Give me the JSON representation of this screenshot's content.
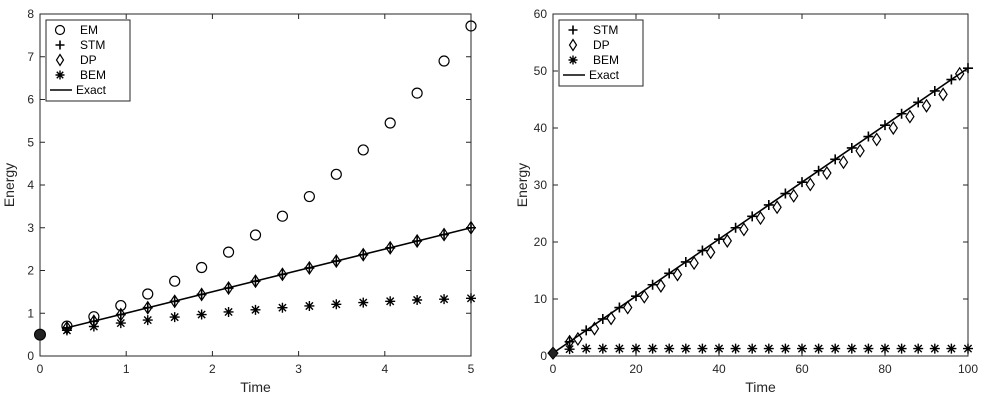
{
  "chart_data": [
    {
      "type": "scatter",
      "title": "",
      "xlabel": "Time",
      "ylabel": "Energy",
      "xlim": [
        0,
        5
      ],
      "ylim": [
        0,
        8
      ],
      "xticks": [
        "0",
        "1",
        "2",
        "3",
        "4",
        "5"
      ],
      "yticks": [
        "0",
        "1",
        "2",
        "3",
        "4",
        "5",
        "6",
        "7",
        "8"
      ],
      "grid": false,
      "legend_position": "top-left",
      "initial_point": [
        0,
        0.5
      ],
      "series": [
        {
          "name": "EM",
          "marker": "circle",
          "x": [
            0.3125,
            0.625,
            0.9375,
            1.25,
            1.5625,
            1.875,
            2.1875,
            2.5,
            2.8125,
            3.125,
            3.4375,
            3.75,
            4.0625,
            4.375,
            4.6875,
            5.0
          ],
          "y": [
            0.7,
            0.92,
            1.18,
            1.45,
            1.75,
            2.07,
            2.43,
            2.83,
            3.27,
            3.73,
            4.25,
            4.82,
            5.45,
            6.15,
            6.9,
            7.72
          ]
        },
        {
          "name": "STM",
          "marker": "plus",
          "x": [
            0.3125,
            0.625,
            0.9375,
            1.25,
            1.5625,
            1.875,
            2.1875,
            2.5,
            2.8125,
            3.125,
            3.4375,
            3.75,
            4.0625,
            4.375,
            4.6875,
            5.0
          ],
          "y": [
            0.66,
            0.81,
            0.97,
            1.13,
            1.28,
            1.44,
            1.59,
            1.75,
            1.91,
            2.06,
            2.22,
            2.37,
            2.53,
            2.69,
            2.84,
            3.0
          ]
        },
        {
          "name": "DP",
          "marker": "diamond",
          "x": [
            0.3125,
            0.625,
            0.9375,
            1.25,
            1.5625,
            1.875,
            2.1875,
            2.5,
            2.8125,
            3.125,
            3.4375,
            3.75,
            4.0625,
            4.375,
            4.6875,
            5.0
          ],
          "y": [
            0.66,
            0.81,
            0.97,
            1.13,
            1.28,
            1.44,
            1.59,
            1.75,
            1.91,
            2.06,
            2.22,
            2.37,
            2.53,
            2.69,
            2.84,
            3.0
          ]
        },
        {
          "name": "BEM",
          "marker": "asterisk",
          "x": [
            0.3125,
            0.625,
            0.9375,
            1.25,
            1.5625,
            1.875,
            2.1875,
            2.5,
            2.8125,
            3.125,
            3.4375,
            3.75,
            4.0625,
            4.375,
            4.6875,
            5.0
          ],
          "y": [
            0.6,
            0.69,
            0.77,
            0.84,
            0.91,
            0.97,
            1.03,
            1.08,
            1.13,
            1.17,
            1.21,
            1.25,
            1.28,
            1.31,
            1.33,
            1.35
          ]
        },
        {
          "name": "Exact",
          "marker": "line",
          "x": [
            0.3125,
            5.0
          ],
          "y": [
            0.66,
            3.0
          ]
        }
      ]
    },
    {
      "type": "scatter",
      "title": "",
      "xlabel": "Time",
      "ylabel": "Energy",
      "xlim": [
        0,
        100
      ],
      "ylim": [
        0,
        60
      ],
      "xticks": [
        "0",
        "20",
        "40",
        "60",
        "80",
        "100"
      ],
      "yticks": [
        "0",
        "10",
        "20",
        "30",
        "40",
        "50",
        "60"
      ],
      "grid": false,
      "legend_position": "top-left",
      "initial_point": [
        0,
        0.5
      ],
      "series": [
        {
          "name": "STM",
          "marker": "plus",
          "x": [
            4,
            8,
            12,
            16,
            20,
            24,
            28,
            32,
            36,
            40,
            44,
            48,
            52,
            56,
            60,
            64,
            68,
            72,
            76,
            80,
            84,
            88,
            92,
            96,
            100
          ],
          "y": [
            2.5,
            4.5,
            6.5,
            8.5,
            10.5,
            12.5,
            14.5,
            16.5,
            18.5,
            20.5,
            22.5,
            24.5,
            26.5,
            28.5,
            30.5,
            32.5,
            34.5,
            36.5,
            38.5,
            40.5,
            42.5,
            44.5,
            46.5,
            48.5,
            50.5
          ]
        },
        {
          "name": "DP",
          "marker": "diamond",
          "x": [
            4,
            6,
            10,
            14,
            18,
            22,
            26,
            30,
            34,
            38,
            42,
            46,
            50,
            54,
            58,
            62,
            66,
            70,
            74,
            78,
            82,
            86,
            90,
            94,
            98
          ],
          "y": [
            2.5,
            3.0,
            4.8,
            6.6,
            8.5,
            10.4,
            12.3,
            14.3,
            16.3,
            18.2,
            20.2,
            22.2,
            24.2,
            26.1,
            28.1,
            30.1,
            32.1,
            34.0,
            36.0,
            38.0,
            40.0,
            42.0,
            43.9,
            45.9,
            49.5
          ]
        },
        {
          "name": "BEM",
          "marker": "asterisk",
          "x": [
            4,
            8,
            12,
            16,
            20,
            24,
            28,
            32,
            36,
            40,
            44,
            48,
            52,
            56,
            60,
            64,
            68,
            72,
            76,
            80,
            84,
            88,
            92,
            96,
            100
          ],
          "y": [
            1.2,
            1.3,
            1.3,
            1.3,
            1.3,
            1.3,
            1.3,
            1.3,
            1.3,
            1.3,
            1.3,
            1.3,
            1.3,
            1.3,
            1.3,
            1.3,
            1.3,
            1.3,
            1.3,
            1.3,
            1.3,
            1.3,
            1.3,
            1.3,
            1.3
          ]
        },
        {
          "name": "Exact",
          "marker": "line",
          "x": [
            0,
            100
          ],
          "y": [
            0.5,
            50.5
          ]
        }
      ]
    }
  ]
}
